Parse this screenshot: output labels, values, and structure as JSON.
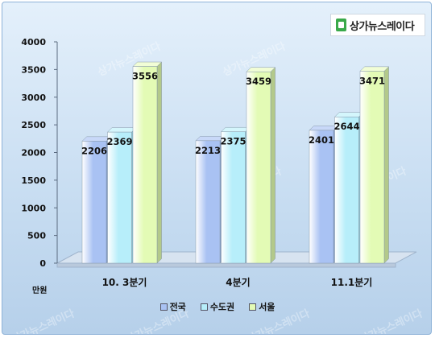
{
  "brand": {
    "name": "상가뉴스레이다",
    "watermark": "상가뉴스레이다"
  },
  "unit_label": "만원",
  "legend": [
    {
      "label": "전국",
      "color": "#a9c2f3"
    },
    {
      "label": "수도권",
      "color": "#b7eefa"
    },
    {
      "label": "서울",
      "color": "#e3fbb5"
    }
  ],
  "chart_data": {
    "type": "bar",
    "categories": [
      "10. 3분기",
      "4분기",
      "11.1분기"
    ],
    "series": [
      {
        "name": "전국",
        "values": [
          2206,
          2213,
          2401
        ]
      },
      {
        "name": "수도권",
        "values": [
          2369,
          2375,
          2644
        ]
      },
      {
        "name": "서울",
        "values": [
          3556,
          3459,
          3471
        ]
      }
    ],
    "ylim": [
      0,
      4000
    ],
    "yticks": [
      0,
      500,
      1000,
      1500,
      2000,
      2500,
      3000,
      3500,
      4000
    ],
    "ylabel": "만원",
    "legend_position": "bottom",
    "grid": false
  }
}
